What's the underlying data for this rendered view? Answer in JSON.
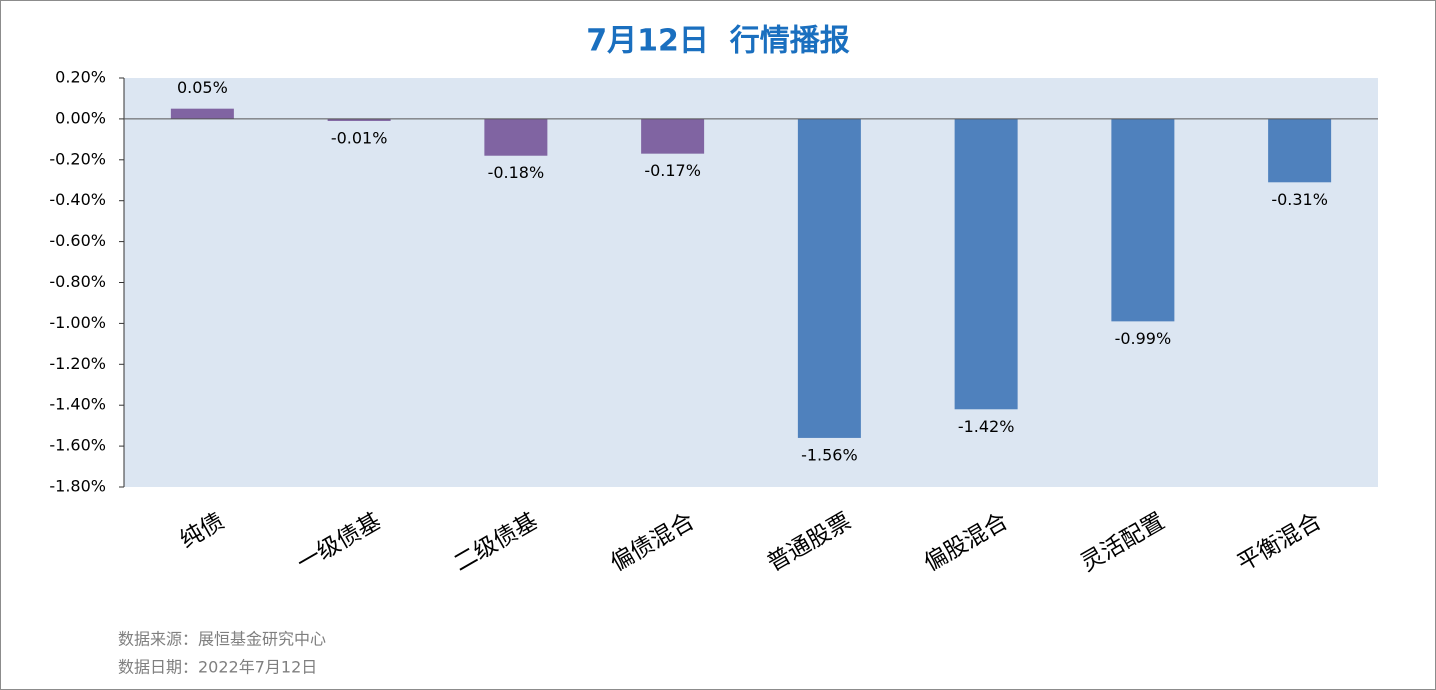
{
  "chart_data": {
    "type": "bar",
    "title": "7月12日  行情播报",
    "categories": [
      "纯债",
      "一级债基",
      "二级债基",
      "偏债混合",
      "普通股票",
      "偏股混合",
      "灵活配置",
      "平衡混合"
    ],
    "values": [
      0.05,
      -0.01,
      -0.18,
      -0.17,
      -1.56,
      -1.42,
      -0.99,
      -0.31
    ],
    "value_labels": [
      "0.05%",
      "-0.01%",
      "-0.18%",
      "-0.17%",
      "-1.56%",
      "-1.42%",
      "-0.99%",
      "-0.31%"
    ],
    "colors": [
      "#8064a2",
      "#8064a2",
      "#8064a2",
      "#8064a2",
      "#4f81bd",
      "#4f81bd",
      "#4f81bd",
      "#4f81bd"
    ],
    "ylim": [
      -1.8,
      0.2
    ],
    "yticks": [
      {
        "value": 0.2,
        "label": "0.20%"
      },
      {
        "value": 0,
        "label": "0.00%"
      },
      {
        "value": -0.2,
        "label": "-0.20%"
      },
      {
        "value": -0.4,
        "label": "-0.40%"
      },
      {
        "value": -0.6,
        "label": "-0.60%"
      },
      {
        "value": -0.8,
        "label": "-0.80%"
      },
      {
        "value": -1.0,
        "label": "-1.00%"
      },
      {
        "value": -1.2,
        "label": "-1.20%"
      },
      {
        "value": -1.4,
        "label": "-1.40%"
      },
      {
        "value": -1.6,
        "label": "-1.60%"
      },
      {
        "value": -1.8,
        "label": "-1.80%"
      }
    ],
    "notes": [
      "数据来源：展恒基金研究中心",
      "数据日期：2022年7月12日"
    ]
  }
}
